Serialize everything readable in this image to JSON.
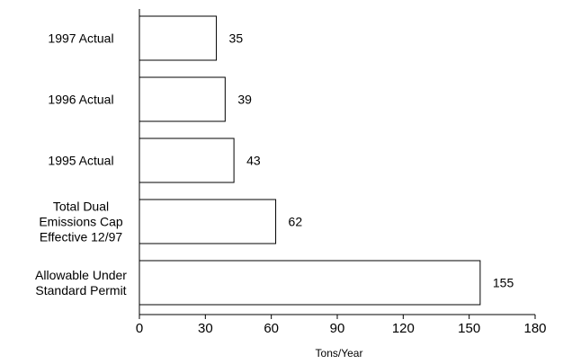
{
  "chart_data": {
    "type": "bar",
    "orientation": "horizontal",
    "categories": [
      [
        "1997 Actual"
      ],
      [
        "1996 Actual"
      ],
      [
        "1995 Actual"
      ],
      [
        "Total Dual",
        "Emissions Cap",
        "Effective 12/97"
      ],
      [
        "Allowable Under",
        "Standard Permit"
      ]
    ],
    "values": [
      35,
      39,
      43,
      62,
      155
    ],
    "data_labels": [
      "35",
      "39",
      "43",
      "62",
      "155"
    ],
    "xlabel": "Tons/Year",
    "ylabel": "",
    "xlim": [
      0,
      180
    ],
    "xticks": [
      0,
      30,
      60,
      90,
      120,
      150,
      180
    ],
    "grid": false,
    "bar_fill": "#ffffff",
    "bar_stroke": "#000000"
  }
}
